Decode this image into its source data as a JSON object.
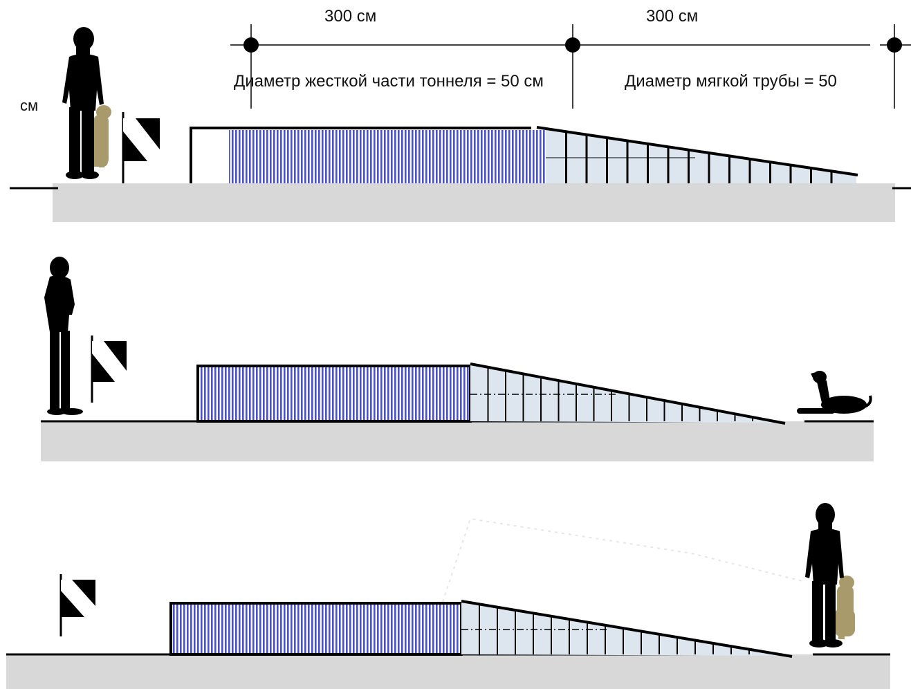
{
  "dimensions": {
    "left_length": "300 см",
    "right_length": "300 см"
  },
  "labels": {
    "rigid_diameter": "Диаметр жесткой части тоннеля = 50 см",
    "soft_diameter": "Диаметр мягкой трубы = 50",
    "unit_fragment": "см"
  },
  "colors": {
    "rigid_stripe": "#4a50d6",
    "soft_fill": "#dde6ef",
    "ground": "#d8d8d8",
    "silhouette": "#000000",
    "dog_tan": "#a89a6a"
  },
  "icons": {
    "flag": "checkered-flag-icon",
    "handler": "handler-silhouette-icon",
    "dog_sitting": "sitting-dog-icon",
    "dog_lying": "lying-dog-icon"
  }
}
